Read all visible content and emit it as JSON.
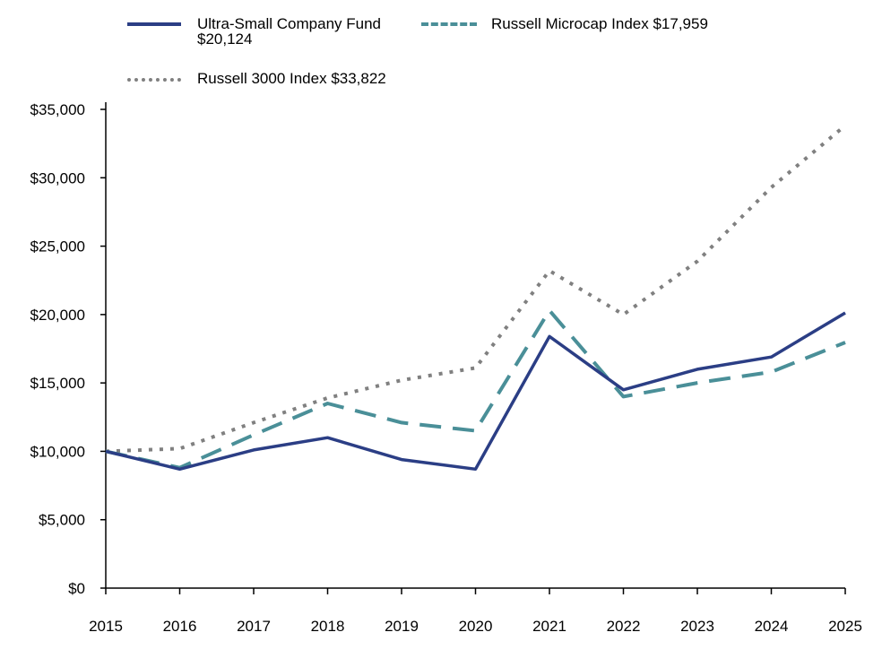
{
  "chart_data": {
    "type": "line",
    "x": [
      "2015",
      "2016",
      "2017",
      "2018",
      "2019",
      "2020",
      "2021",
      "2022",
      "2023",
      "2024",
      "2025"
    ],
    "ylim": [
      0,
      35000
    ],
    "yticks": [
      0,
      5000,
      10000,
      15000,
      20000,
      25000,
      30000,
      35000
    ],
    "ytick_labels": [
      "$0",
      "$5,000",
      "$10,000",
      "$15,000",
      "$20,000",
      "$25,000",
      "$30,000",
      "$35,000"
    ],
    "xlabel": "",
    "ylabel": "",
    "grid": false,
    "legend_position": "top",
    "series": [
      {
        "name": "Ultra-Small Company Fund",
        "legend_line1": "Ultra-Small Company Fund",
        "legend_line2": "$20,124",
        "color": "#2b3e85",
        "style": "solid",
        "values": [
          10000,
          8700,
          10100,
          11000,
          9400,
          8700,
          18400,
          14500,
          16000,
          16900,
          20124
        ]
      },
      {
        "name": "Russell Microcap Index",
        "legend_text": "Russell Microcap Index $17,959",
        "color": "#4a8f98",
        "style": "dashed",
        "values": [
          10000,
          8800,
          11200,
          13500,
          12100,
          11500,
          20300,
          14000,
          15000,
          15800,
          17959
        ]
      },
      {
        "name": "Russell 3000 Index",
        "legend_text": "Russell 3000 Index $33,822",
        "color": "#808080",
        "style": "dotted",
        "values": [
          10000,
          10200,
          12100,
          13900,
          15200,
          16100,
          23200,
          20000,
          23900,
          29300,
          33822
        ]
      }
    ]
  }
}
